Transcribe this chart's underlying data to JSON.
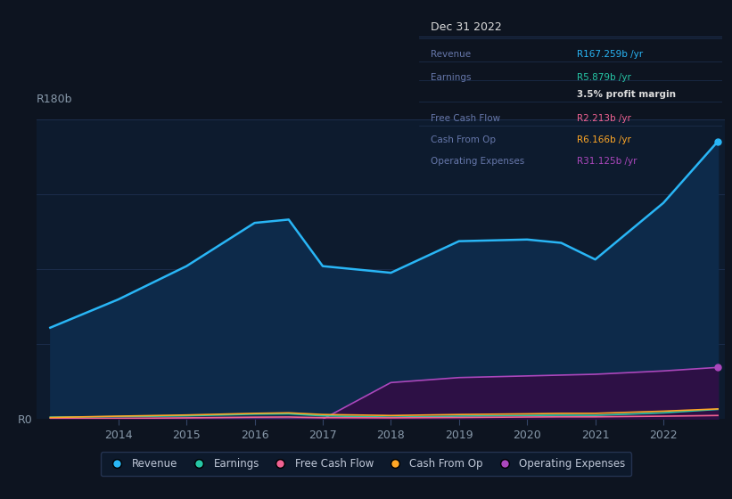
{
  "background_color": "#0d1420",
  "plot_bg_color": "#0d1b2e",
  "grid_color": "#1e3050",
  "text_color": "#8899aa",
  "title_color": "#ffffff",
  "years": [
    2013,
    2014,
    2015,
    2016,
    2016.5,
    2017,
    2018,
    2019,
    2020,
    2020.5,
    2021,
    2022,
    2022.8
  ],
  "revenue": [
    55,
    72,
    92,
    118,
    120,
    92,
    88,
    107,
    108,
    106,
    96,
    130,
    167
  ],
  "earnings": [
    1.2,
    1.5,
    2.0,
    3.0,
    3.2,
    2.0,
    1.2,
    1.8,
    2.2,
    2.4,
    2.3,
    3.8,
    5.879
  ],
  "free_cash_flow": [
    0.3,
    0.5,
    0.8,
    1.2,
    1.3,
    0.9,
    0.8,
    1.0,
    1.3,
    1.4,
    1.4,
    1.8,
    2.213
  ],
  "cash_from_op": [
    1.0,
    1.8,
    2.5,
    3.5,
    3.8,
    2.8,
    2.2,
    2.8,
    3.2,
    3.5,
    3.5,
    4.8,
    6.166
  ],
  "operating_exp": [
    0,
    0,
    0,
    0,
    0,
    0,
    22,
    25,
    26,
    26.5,
    27,
    29,
    31.125
  ],
  "revenue_color": "#29b6f6",
  "earnings_color": "#26c6a6",
  "free_cash_flow_color": "#f06292",
  "cash_from_op_color": "#ffa726",
  "operating_exp_color": "#ab47bc",
  "revenue_fill_color": "#0d2a4a",
  "operating_exp_fill_color": "#2d1045",
  "ylim": [
    0,
    180
  ],
  "ytick_labels": [
    "R0",
    "R180b"
  ],
  "xtick_years": [
    2014,
    2015,
    2016,
    2017,
    2018,
    2019,
    2020,
    2021,
    2022
  ],
  "tooltip_title": "Dec 31 2022",
  "legend_labels": [
    "Revenue",
    "Earnings",
    "Free Cash Flow",
    "Cash From Op",
    "Operating Expenses"
  ],
  "legend_colors": [
    "#29b6f6",
    "#26c6a6",
    "#f06292",
    "#ffa726",
    "#ab47bc"
  ],
  "tooltip_rows": [
    {
      "label": "Revenue",
      "value": "R167.259b /yr",
      "color": "#29b6f6",
      "bold": false
    },
    {
      "label": "Earnings",
      "value": "R5.879b /yr",
      "color": "#26c6a6",
      "bold": false
    },
    {
      "label": "",
      "value": "3.5% profit margin",
      "color": "#dddddd",
      "bold": true
    },
    {
      "label": "Free Cash Flow",
      "value": "R2.213b /yr",
      "color": "#f06292",
      "bold": false
    },
    {
      "label": "Cash From Op",
      "value": "R6.166b /yr",
      "color": "#ffa726",
      "bold": false
    },
    {
      "label": "Operating Expenses",
      "value": "R31.125b /yr",
      "color": "#ab47bc",
      "bold": false
    }
  ]
}
